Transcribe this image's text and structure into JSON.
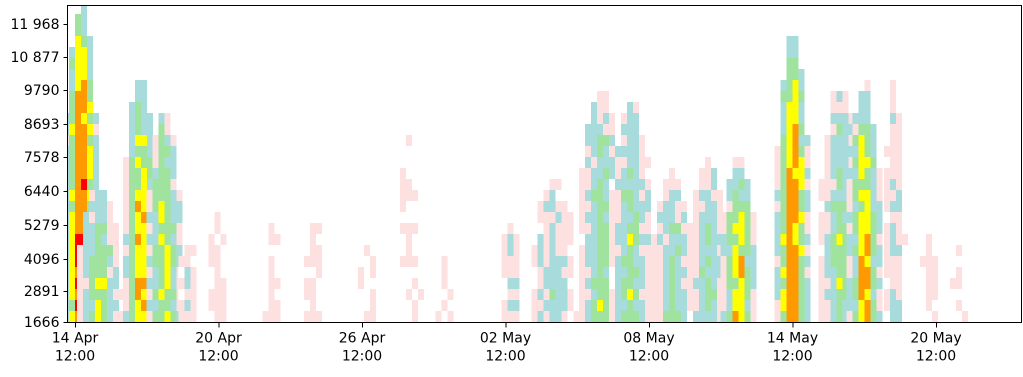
{
  "chart_data": {
    "type": "heatmap",
    "title": "",
    "xlabel": "",
    "ylabel": "",
    "grid": false,
    "legend": "none",
    "y_ticks": [
      "1666",
      "2891",
      "4096",
      "5279",
      "6440",
      "7578",
      "8693",
      "9790",
      "10877",
      "11968"
    ],
    "y_ticks_display": [
      "1666",
      "2891",
      "4096",
      "5279",
      "6440",
      "7578",
      "8693",
      "9790",
      "10 877",
      "11 968"
    ],
    "x_ticks": [
      {
        "date": "2024-04-14 12:00",
        "line1": "14 Apr",
        "line2": "12:00"
      },
      {
        "date": "2024-04-20 12:00",
        "line1": "20 Apr",
        "line2": "12:00"
      },
      {
        "date": "2024-04-26 12:00",
        "line1": "26 Apr",
        "line2": "12:00"
      },
      {
        "date": "2024-05-02 12:00",
        "line1": "02 May",
        "line2": "12:00"
      },
      {
        "date": "2024-05-08 12:00",
        "line1": "08 May",
        "line2": "12:00"
      },
      {
        "date": "2024-05-14 12:00",
        "line1": "14 May",
        "line2": "12:00"
      },
      {
        "date": "2024-05-20 12:00",
        "line1": "20 May",
        "line2": "12:00"
      }
    ],
    "x_range": [
      "2024-04-14 00:00",
      "2024-05-28 00:00"
    ],
    "y_range": [
      1666,
      13000
    ],
    "colormap": [
      "#ffffff",
      "#fde0e0",
      "#a8dcdc",
      "#9fe39f",
      "#ffff00",
      "#ff9900",
      "#ff0000",
      "#aa0000"
    ],
    "series": [
      {
        "x": "2024-04-14 18:00",
        "y_from": 1666,
        "y_to": 13000,
        "intensity": 0.95
      },
      {
        "x": "2024-04-15 12:00",
        "y_from": 1666,
        "y_to": 6440,
        "intensity": 0.55
      },
      {
        "x": "2024-04-17 06:00",
        "y_from": 1666,
        "y_to": 10300,
        "intensity": 0.72
      },
      {
        "x": "2024-04-18 06:00",
        "y_from": 1666,
        "y_to": 9200,
        "intensity": 0.62
      },
      {
        "x": "2024-04-19 06:00",
        "y_from": 1666,
        "y_to": 5500,
        "intensity": 0.2
      },
      {
        "x": "2024-04-20 12:00",
        "y_from": 1666,
        "y_to": 5800,
        "intensity": 0.2
      },
      {
        "x": "2024-04-22 18:00",
        "y_from": 1666,
        "y_to": 5500,
        "intensity": 0.1
      },
      {
        "x": "2024-04-24 12:00",
        "y_from": 1666,
        "y_to": 5800,
        "intensity": 0.1
      },
      {
        "x": "2024-04-26 18:00",
        "y_from": 1666,
        "y_to": 5500,
        "intensity": 0.1
      },
      {
        "x": "2024-04-28 12:00",
        "y_from": 1666,
        "y_to": 8900,
        "intensity": 0.08
      },
      {
        "x": "2024-04-30 00:00",
        "y_from": 1666,
        "y_to": 4600,
        "intensity": 0.1
      },
      {
        "x": "2024-05-02 18:00",
        "y_from": 1666,
        "y_to": 5600,
        "intensity": 0.25
      },
      {
        "x": "2024-05-04 12:00",
        "y_from": 1666,
        "y_to": 6800,
        "intensity": 0.35
      },
      {
        "x": "2024-05-06 12:00",
        "y_from": 1666,
        "y_to": 10000,
        "intensity": 0.5
      },
      {
        "x": "2024-05-07 18:00",
        "y_from": 1666,
        "y_to": 9500,
        "intensity": 0.45
      },
      {
        "x": "2024-05-09 12:00",
        "y_from": 1666,
        "y_to": 7000,
        "intensity": 0.42
      },
      {
        "x": "2024-05-11 00:00",
        "y_from": 1666,
        "y_to": 7500,
        "intensity": 0.4
      },
      {
        "x": "2024-05-12 06:00",
        "y_from": 1666,
        "y_to": 7500,
        "intensity": 0.68
      },
      {
        "x": "2024-05-14 12:00",
        "y_from": 1666,
        "y_to": 11500,
        "intensity": 0.85
      },
      {
        "x": "2024-05-16 12:00",
        "y_from": 1666,
        "y_to": 10000,
        "intensity": 0.45
      },
      {
        "x": "2024-05-17 12:00",
        "y_from": 1666,
        "y_to": 10000,
        "intensity": 0.72
      },
      {
        "x": "2024-05-18 18:00",
        "y_from": 1666,
        "y_to": 10000,
        "intensity": 0.3
      },
      {
        "x": "2024-05-20 06:00",
        "y_from": 1666,
        "y_to": 5500,
        "intensity": 0.1
      },
      {
        "x": "2024-05-21 12:00",
        "y_from": 1666,
        "y_to": 4600,
        "intensity": 0.08
      }
    ]
  }
}
